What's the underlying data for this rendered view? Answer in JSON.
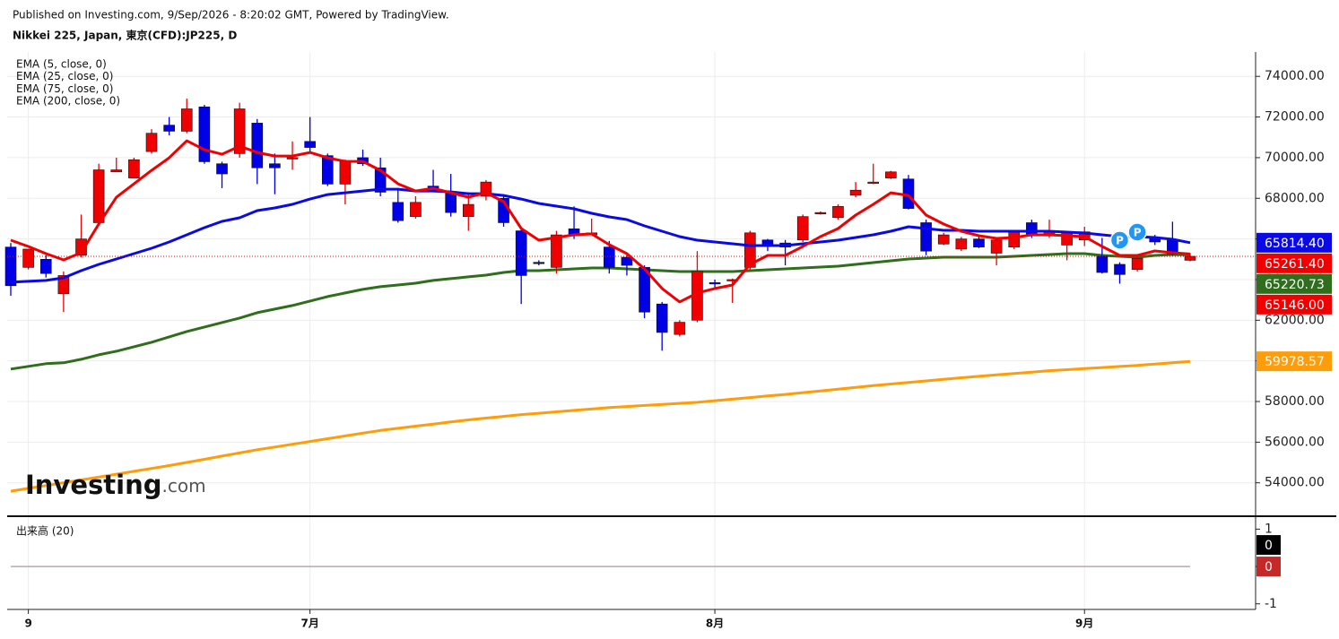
{
  "header": {
    "published": "Published on Investing.com, 9/Sep/2026 - 8:20:02 GMT, Powered by TradingView.",
    "symbol": "Nikkei 225, Japan, 東京(CFD):JP225, D"
  },
  "logo": {
    "text": "Investing",
    "suffix": ".com"
  },
  "chart_data": {
    "type": "candlestick",
    "categories": [
      null,
      "9",
      null,
      null,
      null,
      null,
      null,
      null,
      null,
      null,
      null,
      null,
      null,
      null,
      null,
      null,
      null,
      "7月",
      null,
      null,
      null,
      null,
      null,
      null,
      null,
      null,
      null,
      null,
      null,
      null,
      null,
      null,
      null,
      null,
      null,
      null,
      null,
      null,
      null,
      null,
      "8月",
      null,
      null,
      null,
      null,
      null,
      null,
      null,
      null,
      null,
      null,
      null,
      null,
      null,
      null,
      null,
      null,
      null,
      null,
      null,
      null,
      "9月",
      null,
      null,
      null,
      null,
      null,
      null
    ],
    "candles": {
      "open": [
        65600,
        64600,
        65000,
        63300,
        65200,
        66800,
        69300,
        69000,
        70300,
        71600,
        71300,
        72500,
        69700,
        70200,
        71700,
        69700,
        70000,
        70800,
        70100,
        68700,
        70000,
        69500,
        67800,
        67100,
        68600,
        68300,
        67100,
        68100,
        68000,
        66400,
        64850,
        64600,
        66500,
        66200,
        65600,
        65100,
        64600,
        62800,
        61300,
        62000,
        63850,
        64000,
        64600,
        65950,
        65800,
        65950,
        67250,
        67050,
        68150,
        68800,
        69000,
        68950,
        66800,
        65750,
        65500,
        66000,
        65300,
        65600,
        66800,
        66150,
        65700,
        65950,
        65150,
        64750,
        64500,
        66050,
        65950,
        64950
      ],
      "high": [
        65800,
        65500,
        65200,
        64400,
        67200,
        69700,
        70000,
        70000,
        71400,
        72000,
        72900,
        72600,
        69800,
        72700,
        71900,
        70200,
        70800,
        72000,
        70200,
        69900,
        70400,
        70000,
        68500,
        68100,
        69400,
        69200,
        68300,
        68900,
        68200,
        66500,
        64950,
        66400,
        67600,
        67000,
        65900,
        65200,
        64700,
        62900,
        62000,
        65400,
        64000,
        64050,
        66400,
        66000,
        65950,
        67200,
        67350,
        67700,
        68800,
        69700,
        69350,
        69150,
        66950,
        66300,
        66100,
        66150,
        66050,
        66400,
        66950,
        66950,
        66400,
        66600,
        66050,
        64850,
        65150,
        66200,
        66850,
        65300
      ],
      "low": [
        63200,
        64500,
        64100,
        62400,
        65100,
        66700,
        69300,
        69000,
        70200,
        71100,
        71200,
        69700,
        68500,
        70000,
        68700,
        68200,
        69400,
        70300,
        68600,
        67700,
        69600,
        68100,
        66800,
        67000,
        68400,
        67100,
        66400,
        67900,
        66600,
        62800,
        64700,
        64300,
        66000,
        66200,
        64300,
        64200,
        62100,
        60500,
        61200,
        61900,
        63550,
        62850,
        64500,
        65400,
        64700,
        65850,
        67200,
        66950,
        68050,
        68700,
        68950,
        67450,
        65200,
        65700,
        65400,
        65550,
        64700,
        65500,
        66050,
        66050,
        64950,
        65650,
        64300,
        63800,
        64400,
        65700,
        65200,
        64900
      ],
      "close": [
        63700,
        65500,
        64300,
        64200,
        66000,
        69400,
        69400,
        69900,
        71200,
        71300,
        72400,
        69800,
        69200,
        72400,
        69500,
        69500,
        70000,
        70500,
        68700,
        69800,
        69700,
        68300,
        66900,
        67800,
        68500,
        67300,
        67700,
        68800,
        66800,
        64200,
        64800,
        66200,
        66200,
        66300,
        64600,
        64700,
        62400,
        61400,
        61900,
        64400,
        63800,
        64000,
        66300,
        65700,
        65600,
        67100,
        67300,
        67600,
        68400,
        68800,
        69300,
        67500,
        65400,
        66200,
        66000,
        65600,
        65950,
        66350,
        66200,
        66400,
        66350,
        66350,
        64350,
        64250,
        65050,
        65850,
        65250,
        65146
      ],
      "up_color": "#f00000",
      "down_color": "#0000e6",
      "last_label": "65146.00"
    },
    "series": [
      {
        "name": "EMA (5, close, 0)",
        "color": "#f00000",
        "last_label": "65261.40",
        "values": [
          65939,
          65630,
          65278,
          64970,
          65322,
          66731,
          68053,
          68714,
          69375,
          69992,
          70828,
          70388,
          70168,
          70564,
          70256,
          70080,
          70080,
          70256,
          69992,
          69815,
          69815,
          69375,
          68714,
          68362,
          68494,
          68273,
          68053,
          68273,
          67833,
          66511,
          65939,
          66071,
          66203,
          66247,
          65719,
          65278,
          64529,
          63560,
          62899,
          63340,
          63560,
          63736,
          64749,
          65190,
          65190,
          65630,
          66115,
          66511,
          67172,
          67701,
          68273,
          68141,
          67172,
          66731,
          66379,
          66159,
          66027,
          66071,
          66203,
          66203,
          66159,
          66115,
          65630,
          65190,
          65190,
          65410,
          65322,
          65261.4
        ]
      },
      {
        "name": "EMA (25, close, 0)",
        "color": "#0a0ae6",
        "last_label": "65814.40",
        "values": [
          63869,
          63913,
          63957,
          64088,
          64441,
          64749,
          65014,
          65278,
          65542,
          65851,
          66203,
          66556,
          66864,
          67040,
          67392,
          67525,
          67701,
          67965,
          68185,
          68273,
          68362,
          68450,
          68450,
          68362,
          68362,
          68318,
          68229,
          68229,
          68141,
          67965,
          67745,
          67613,
          67481,
          67260,
          67084,
          66952,
          66644,
          66379,
          66115,
          65939,
          65851,
          65763,
          65674,
          65674,
          65674,
          65763,
          65851,
          65939,
          66071,
          66203,
          66379,
          66599,
          66511,
          66423,
          66423,
          66379,
          66379,
          66379,
          66379,
          66379,
          66335,
          66291,
          66203,
          66115,
          66115,
          66071,
          65983,
          65814.4
        ]
      },
      {
        "name": "EMA (75, close, 0)",
        "color": "#2f6e1c",
        "last_label": "65220.73",
        "values": [
          59596,
          59728,
          59860,
          59904,
          60080,
          60300,
          60476,
          60697,
          60917,
          61181,
          61446,
          61666,
          61886,
          62107,
          62371,
          62547,
          62723,
          62943,
          63164,
          63340,
          63516,
          63648,
          63736,
          63824,
          63957,
          64045,
          64133,
          64221,
          64353,
          64441,
          64441,
          64485,
          64529,
          64573,
          64573,
          64529,
          64485,
          64441,
          64397,
          64397,
          64397,
          64397,
          64441,
          64485,
          64529,
          64573,
          64617,
          64661,
          64749,
          64838,
          64926,
          65014,
          65058,
          65102,
          65102,
          65102,
          65102,
          65146,
          65190,
          65234,
          65278,
          65278,
          65190,
          65146,
          65102,
          65190,
          65234,
          65220.73
        ]
      },
      {
        "name": "EMA (200, close, 0)",
        "color": "#ff9c0a",
        "last_label": "59978.57",
        "values": [
          53587,
          53726,
          53865,
          54004,
          54143,
          54282,
          54423,
          54564,
          54705,
          54846,
          55002,
          55158,
          55314,
          55470,
          55626,
          55762,
          55898,
          56034,
          56170,
          56306,
          56442,
          56578,
          56682,
          56786,
          56890,
          56994,
          57098,
          57184,
          57270,
          57356,
          57425,
          57494,
          57563,
          57632,
          57701,
          57753,
          57805,
          57857,
          57909,
          57961,
          58039,
          58117,
          58195,
          58273,
          58351,
          58437,
          58523,
          58609,
          58695,
          58781,
          58859,
          58937,
          59015,
          59093,
          59171,
          59240,
          59309,
          59378,
          59447,
          59516,
          59568,
          59620,
          59672,
          59724,
          59776,
          59843,
          59910,
          59978.57
        ]
      }
    ],
    "events": [
      {
        "index": 63,
        "value": 65939,
        "label": "P"
      },
      {
        "index": 64,
        "value": 66335,
        "label": "P"
      }
    ],
    "ylim": [
      52400,
      75200
    ],
    "yticks": [
      {
        "value": 54000,
        "label": "54000.00"
      },
      {
        "value": 56000,
        "label": "56000.00"
      },
      {
        "value": 58000,
        "label": "58000.00"
      },
      {
        "value": 60000,
        "label": "60000.00"
      },
      {
        "value": 62000,
        "label": "62000.00"
      },
      {
        "value": 64000,
        "label": "64000.00"
      },
      {
        "value": 66000,
        "label": "66000.00"
      },
      {
        "value": 68000,
        "label": "68000.00"
      },
      {
        "value": 70000,
        "label": "70000.00"
      },
      {
        "value": 72000,
        "label": "72000.00"
      },
      {
        "value": 74000,
        "label": "74000.00"
      }
    ],
    "grid": true,
    "volume": {
      "label": "出来高 (20)",
      "color": "#000000",
      "ma_color": "#c62828",
      "values": [
        0,
        0,
        0,
        0,
        0,
        0,
        0,
        0,
        0,
        0,
        0,
        0,
        0,
        0,
        0,
        0,
        0,
        0,
        0,
        0,
        0,
        0,
        0,
        0,
        0,
        0,
        0,
        0,
        0,
        0,
        0,
        0,
        0,
        0,
        0,
        0,
        0,
        0,
        0,
        0,
        0,
        0,
        0,
        0,
        0,
        0,
        0,
        0,
        0,
        0,
        0,
        0,
        0,
        0,
        0,
        0,
        0,
        0,
        0,
        0,
        0,
        0,
        0,
        0,
        0,
        0,
        0,
        0
      ],
      "ma": [
        0,
        0,
        0,
        0,
        0,
        0,
        0,
        0,
        0,
        0,
        0,
        0,
        0,
        0,
        0,
        0,
        0,
        0,
        0,
        0,
        0,
        0,
        0,
        0,
        0,
        0,
        0,
        0,
        0,
        0,
        0,
        0,
        0,
        0,
        0,
        0,
        0,
        0,
        0,
        0,
        0,
        0,
        0,
        0,
        0,
        0,
        0,
        0,
        0,
        0,
        0,
        0,
        0,
        0,
        0,
        0,
        0,
        0,
        0,
        0,
        0,
        0,
        0,
        0,
        0,
        0,
        0,
        0
      ],
      "ylim": [
        -1.15,
        1.25
      ],
      "yticks": [
        1,
        0,
        -1
      ]
    }
  }
}
